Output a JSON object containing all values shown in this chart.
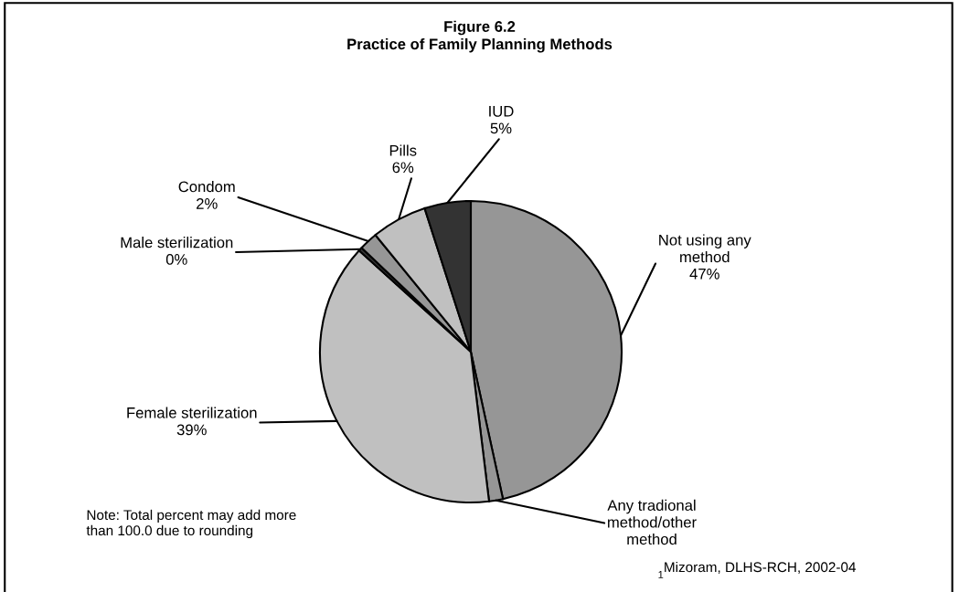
{
  "chart_data": {
    "type": "pie",
    "title": "Figure 6.2\nPractice of Family Planning Methods",
    "categories": [
      "Not using any\nmethod",
      "Any tradional\nmethod/other\nmethod",
      "Female sterilization",
      "Male sterilization",
      "Condom",
      "Pills",
      "IUD"
    ],
    "values": [
      47,
      1.5,
      39,
      0.4,
      2,
      6,
      5
    ],
    "value_labels": [
      "47%",
      null,
      "39%",
      "0%",
      "2%",
      "6%",
      "5%"
    ],
    "colors": [
      "#969696",
      "#969696",
      "#c0c0c0",
      "#333333",
      "#969696",
      "#c0c0c0",
      "#333333"
    ],
    "annotations": [
      "Note: Total percent may add more\nthan 100.0 due to rounding",
      "1",
      "Mizoram, DLHS-RCH, 2002-04"
    ],
    "legend": false
  }
}
